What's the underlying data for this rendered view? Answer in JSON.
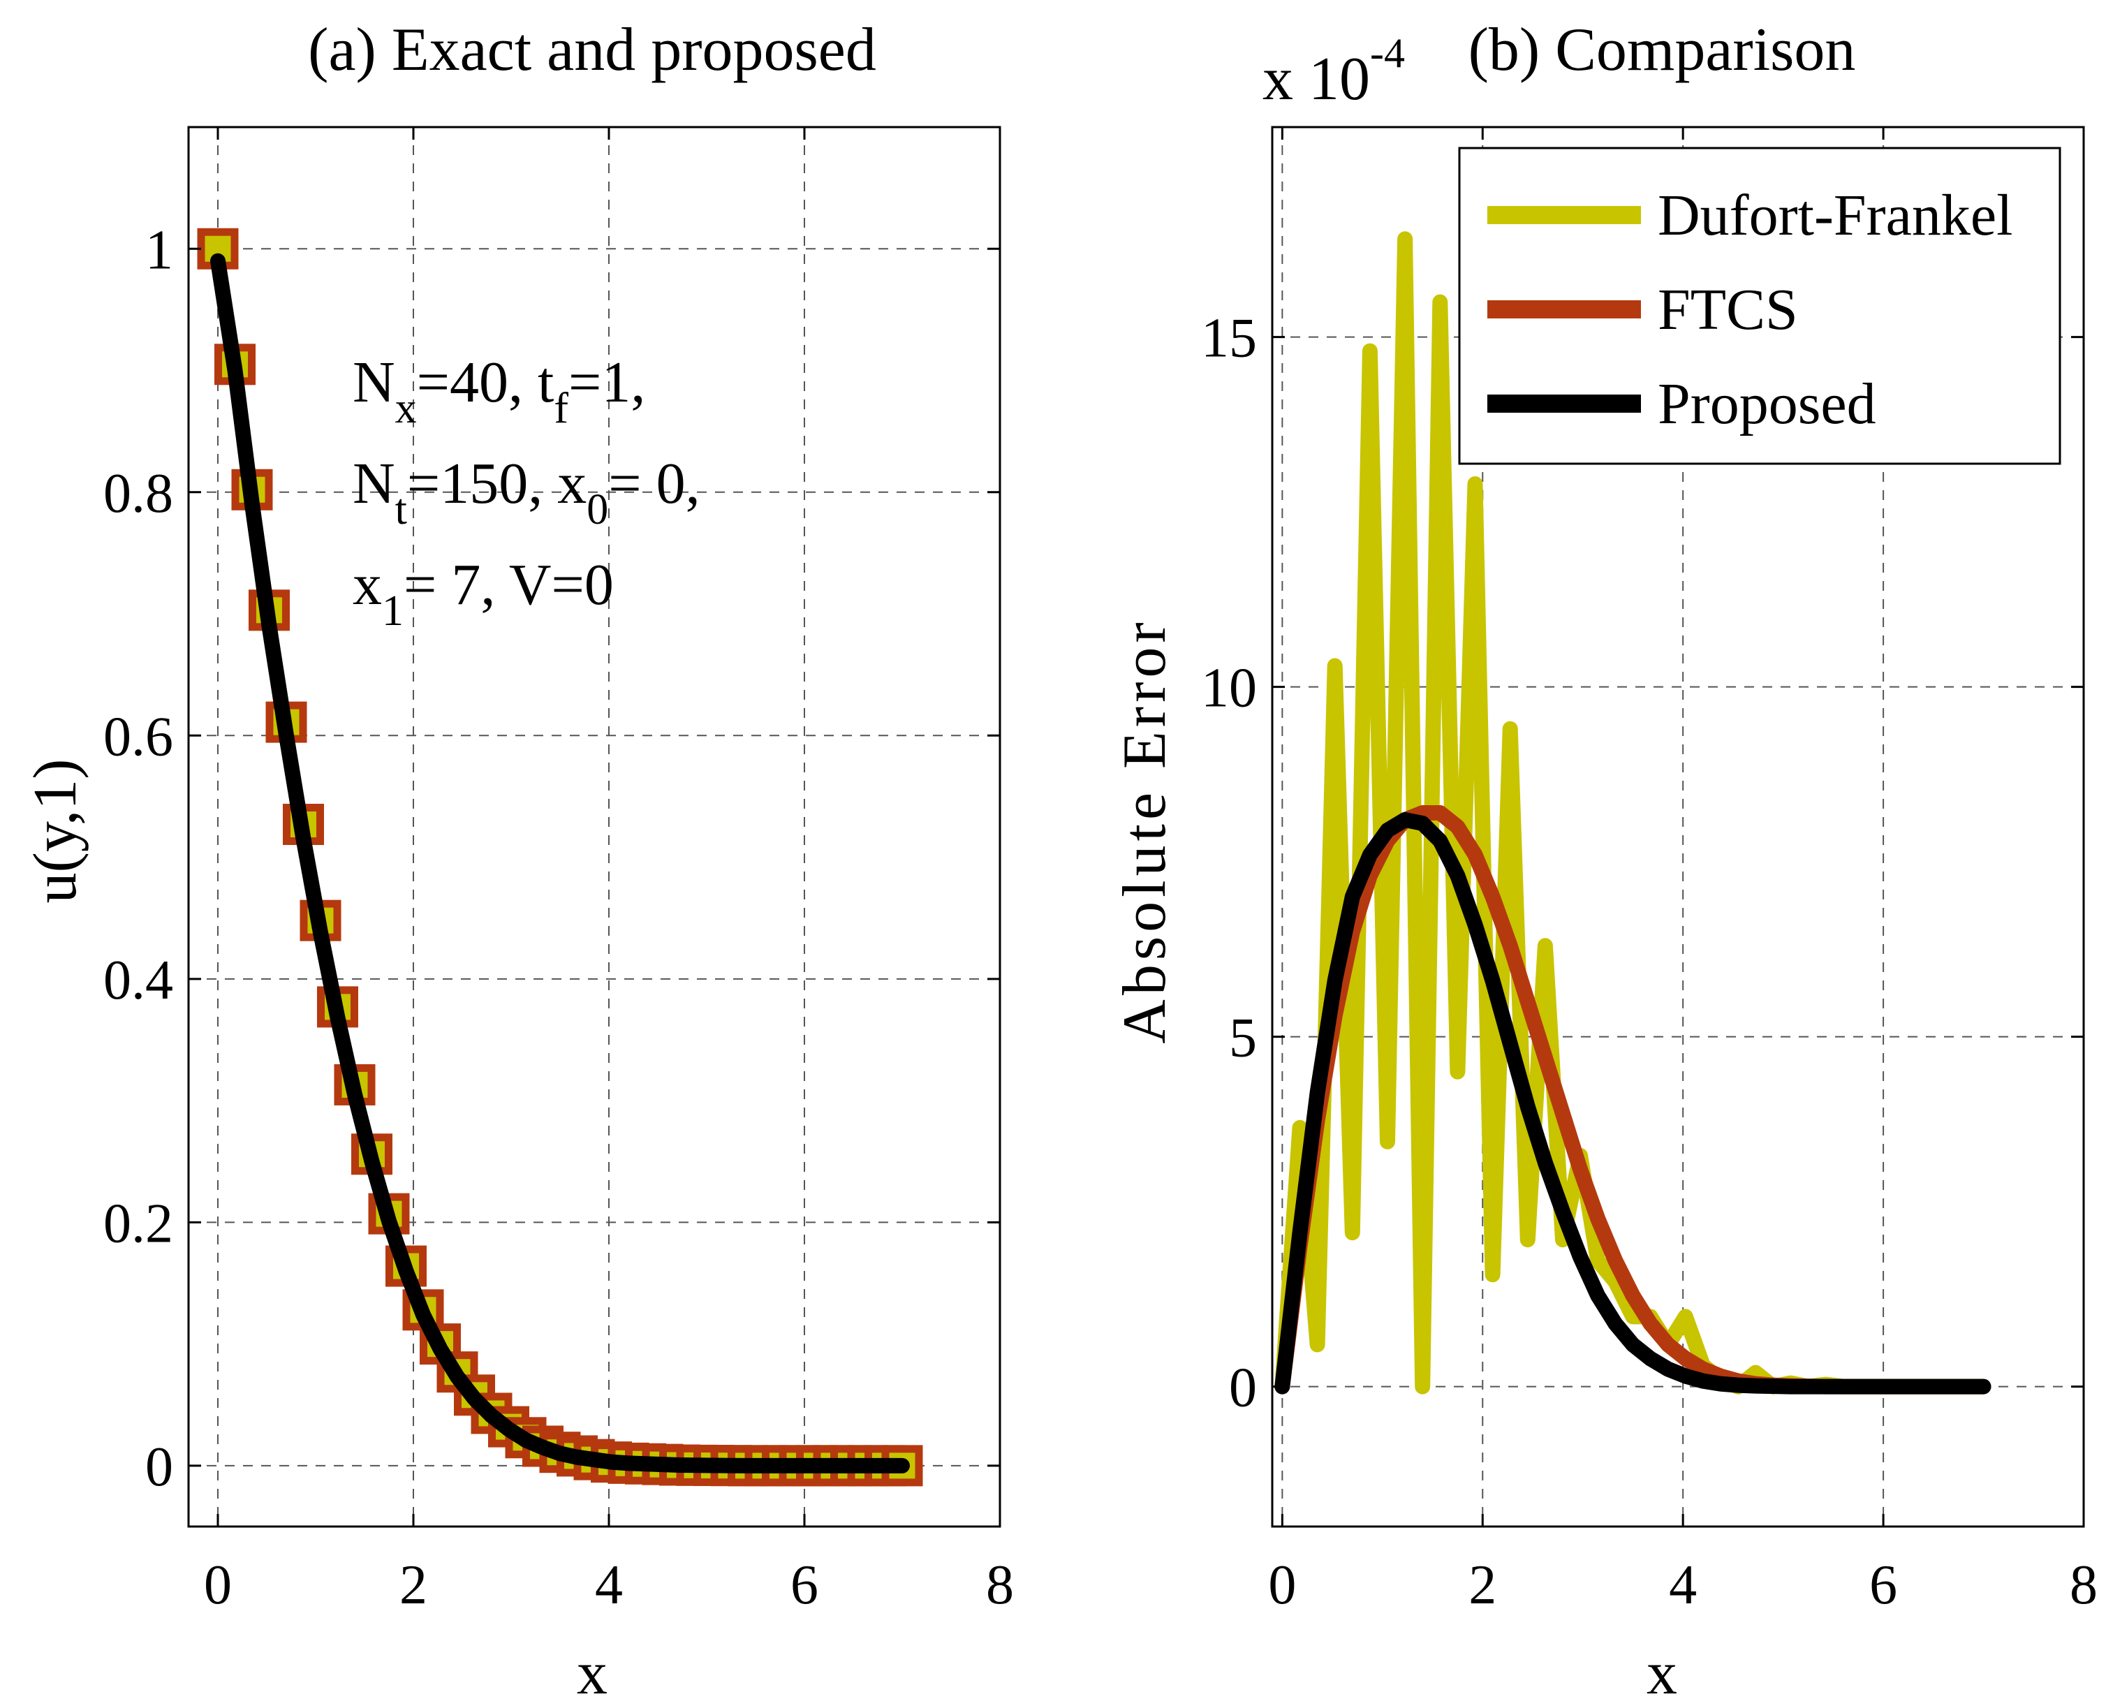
{
  "chart_data": [
    {
      "type": "line",
      "title": "(a) Exact and proposed",
      "xlabel": "x",
      "ylabel": "u(y,1)",
      "xlim": [
        -0.3,
        8
      ],
      "ylim": [
        -0.05,
        1.1
      ],
      "xticks": [
        0,
        2,
        4,
        6,
        8
      ],
      "xtick_labels": [
        "0",
        "2",
        "4",
        "6",
        "8"
      ],
      "yticks": [
        0,
        0.2,
        0.4,
        0.6,
        0.8,
        1
      ],
      "ytick_labels": [
        "0",
        "0.2",
        "0.4",
        "0.6",
        "0.8",
        "1"
      ],
      "grid": true,
      "annotation": {
        "line1": "N",
        "line1_sub": "x",
        "line1_rest": "=40, t",
        "line1_sub2": "f",
        "line1_end": "=1,",
        "line2": "N",
        "line2_sub": "t",
        "line2_rest": "=150, x",
        "line2_sub2": "0",
        "line2_end": "= 0,",
        "line3": "x",
        "line3_sub": "1",
        "line3_rest": "= 7, V=0"
      },
      "series": [
        {
          "name": "Exact",
          "style": "square-markers",
          "color": "#b5390f",
          "fill": "#c8c400",
          "x": [
            0,
            0.175,
            0.35,
            0.525,
            0.7,
            0.875,
            1.05,
            1.225,
            1.4,
            1.575,
            1.75,
            1.925,
            2.1,
            2.275,
            2.45,
            2.625,
            2.8,
            2.975,
            3.15,
            3.325,
            3.5,
            3.675,
            3.85,
            4.025,
            4.2,
            4.375,
            4.55,
            4.725,
            4.9,
            5.075,
            5.25,
            5.425,
            5.6,
            5.775,
            5.95,
            6.125,
            6.3,
            6.475,
            6.65,
            6.825,
            7.0
          ],
          "y": [
            1.0,
            0.905,
            0.802,
            0.703,
            0.611,
            0.527,
            0.448,
            0.377,
            0.313,
            0.256,
            0.207,
            0.164,
            0.128,
            0.1,
            0.077,
            0.058,
            0.043,
            0.032,
            0.023,
            0.016,
            0.011,
            0.008,
            0.005,
            0.003,
            0.002,
            0.0015,
            0.001,
            0.0005,
            0.0003,
            0.0002,
            0.0001,
            0,
            0,
            0,
            0,
            0,
            0,
            0,
            0,
            0,
            0
          ]
        },
        {
          "name": "Proposed",
          "style": "line",
          "color": "#000000",
          "x": [
            0,
            0.175,
            0.35,
            0.525,
            0.7,
            0.875,
            1.05,
            1.225,
            1.4,
            1.575,
            1.75,
            1.925,
            2.1,
            2.275,
            2.45,
            2.625,
            2.8,
            2.975,
            3.15,
            3.325,
            3.5,
            3.675,
            3.85,
            4.025,
            4.2,
            4.375,
            4.55,
            4.725,
            4.9,
            5.075,
            5.25,
            5.425,
            5.6,
            5.775,
            5.95,
            6.125,
            6.3,
            6.475,
            6.65,
            6.825,
            7.0
          ],
          "y": [
            0.99,
            0.9,
            0.79,
            0.69,
            0.6,
            0.515,
            0.438,
            0.368,
            0.305,
            0.25,
            0.201,
            0.16,
            0.124,
            0.096,
            0.073,
            0.055,
            0.041,
            0.03,
            0.021,
            0.015,
            0.01,
            0.007,
            0.005,
            0.003,
            0.002,
            0.0015,
            0.001,
            0.0005,
            0.0003,
            0.0002,
            0.0001,
            0,
            0,
            0,
            0,
            0,
            0,
            0,
            0,
            0,
            0
          ]
        }
      ]
    },
    {
      "type": "line",
      "title": "(b) Comparison",
      "scale_label_prefix": "x 10",
      "scale_label_exp": "-4",
      "xlabel": "x",
      "ylabel": "Absolute Error",
      "xlim": [
        -0.1,
        8
      ],
      "ylim": [
        -2,
        18
      ],
      "xticks": [
        0,
        2,
        4,
        6,
        8
      ],
      "xtick_labels": [
        "0",
        "2",
        "4",
        "6",
        "8"
      ],
      "yticks": [
        0,
        5,
        10,
        15
      ],
      "ytick_labels": [
        "0",
        "5",
        "10",
        "15"
      ],
      "grid": true,
      "legend": {
        "position": "top-right",
        "entries": [
          "Dufort-Frankel",
          "FTCS",
          "Proposed"
        ]
      },
      "series": [
        {
          "name": "Dufort-Frankel",
          "color": "#c8c400",
          "x": [
            0,
            0.175,
            0.35,
            0.525,
            0.7,
            0.875,
            1.05,
            1.225,
            1.4,
            1.575,
            1.75,
            1.925,
            2.1,
            2.275,
            2.45,
            2.625,
            2.8,
            2.975,
            3.15,
            3.325,
            3.5,
            3.675,
            3.85,
            4.025,
            4.2,
            4.375,
            4.55,
            4.725,
            4.9,
            5.075,
            5.25,
            5.425,
            5.6,
            5.775,
            5.95,
            6.125,
            6.3,
            6.475,
            6.65,
            6.825,
            7.0
          ],
          "y": [
            0,
            3.7,
            0.6,
            10.3,
            2.2,
            14.8,
            3.5,
            16.4,
            0,
            15.5,
            4.5,
            12.9,
            1.6,
            9.4,
            2.1,
            6.3,
            2.1,
            3.3,
            1.8,
            1.5,
            1.0,
            1.0,
            0.6,
            1.0,
            0.3,
            0.1,
            0,
            0.2,
            0,
            0.05,
            0,
            0.03,
            0,
            0,
            0,
            0,
            0,
            0,
            0,
            0,
            0
          ]
        },
        {
          "name": "FTCS",
          "color": "#b5390f",
          "x": [
            0,
            0.175,
            0.35,
            0.525,
            0.7,
            0.875,
            1.05,
            1.225,
            1.4,
            1.575,
            1.75,
            1.925,
            2.1,
            2.275,
            2.45,
            2.625,
            2.8,
            2.975,
            3.15,
            3.325,
            3.5,
            3.675,
            3.85,
            4.025,
            4.2,
            4.375,
            4.55,
            4.725,
            4.9,
            5.075,
            5.25,
            5.425,
            5.6,
            5.775,
            5.95,
            6.125,
            6.3,
            6.475,
            6.65,
            6.825,
            7.0
          ],
          "y": [
            0,
            2.0,
            3.8,
            5.3,
            6.5,
            7.3,
            7.8,
            8.1,
            8.2,
            8.2,
            8.0,
            7.6,
            7.0,
            6.3,
            5.5,
            4.7,
            3.9,
            3.1,
            2.4,
            1.8,
            1.3,
            0.9,
            0.6,
            0.4,
            0.25,
            0.15,
            0.08,
            0.04,
            0.02,
            0.01,
            0.005,
            0,
            0,
            0,
            0,
            0,
            0,
            0,
            0,
            0,
            0
          ]
        },
        {
          "name": "Proposed",
          "color": "#000000",
          "x": [
            0,
            0.175,
            0.35,
            0.525,
            0.7,
            0.875,
            1.05,
            1.225,
            1.4,
            1.575,
            1.75,
            1.925,
            2.1,
            2.275,
            2.45,
            2.625,
            2.8,
            2.975,
            3.15,
            3.325,
            3.5,
            3.675,
            3.85,
            4.025,
            4.2,
            4.375,
            4.55,
            4.725,
            4.9,
            5.075,
            5.25,
            5.425,
            5.6,
            5.775,
            5.95,
            6.125,
            6.3,
            6.475,
            6.65,
            6.825,
            7.0
          ],
          "y": [
            0,
            2.2,
            4.2,
            5.8,
            7.0,
            7.6,
            7.95,
            8.1,
            8.05,
            7.8,
            7.3,
            6.6,
            5.8,
            4.9,
            4.0,
            3.2,
            2.5,
            1.85,
            1.3,
            0.9,
            0.6,
            0.4,
            0.25,
            0.15,
            0.08,
            0.04,
            0.02,
            0.01,
            0.005,
            0,
            0,
            0,
            0,
            0,
            0,
            0,
            0,
            0,
            0,
            0,
            0
          ]
        }
      ]
    }
  ]
}
